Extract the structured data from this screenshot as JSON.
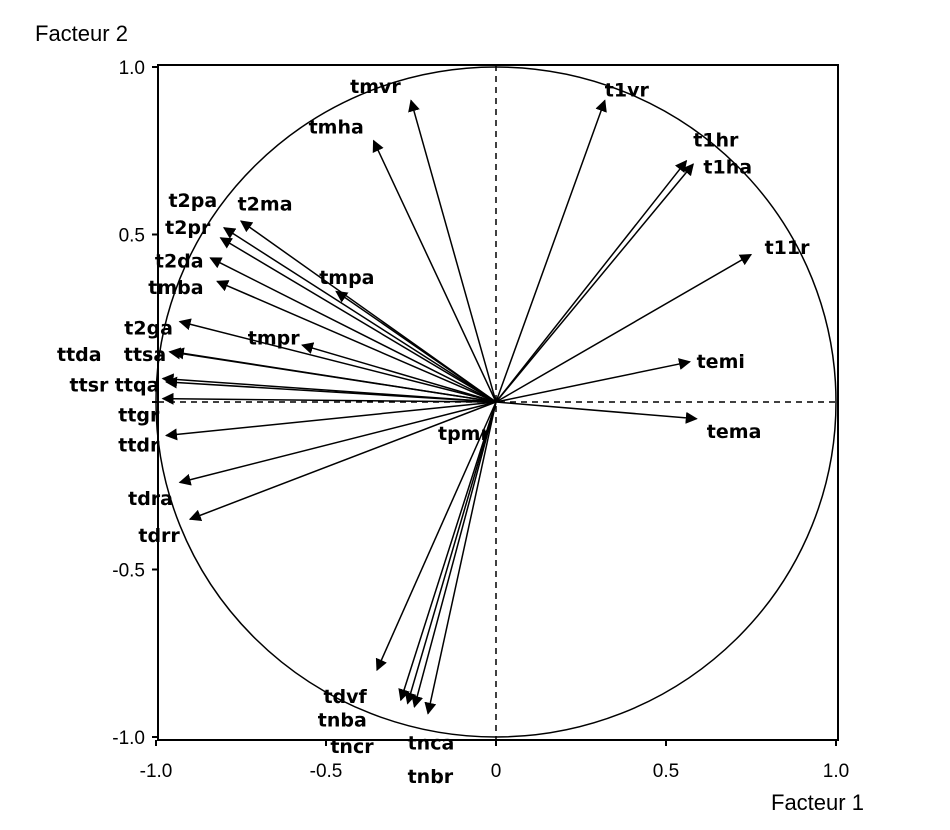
{
  "chart_data": {
    "type": "scatter",
    "title": "",
    "xlabel": "Facteur 1",
    "ylabel": "Facteur 2",
    "xlim": [
      -1.0,
      1.0
    ],
    "ylim": [
      -1.0,
      1.0
    ],
    "xticks": [
      "-1.0",
      "-0.5",
      "0",
      "0.5",
      "1.0"
    ],
    "yticks": [
      "1.0",
      "0.5",
      "",
      "-0.5",
      "-1.0"
    ],
    "grid": false,
    "unit_circle": true,
    "vectors": [
      {
        "name": "tmvr",
        "x": -0.25,
        "y": 0.9
      },
      {
        "name": "tmha",
        "x": -0.36,
        "y": 0.78
      },
      {
        "name": "t1vr",
        "x": 0.32,
        "y": 0.9
      },
      {
        "name": "t1hr",
        "x": 0.56,
        "y": 0.72
      },
      {
        "name": "t1ha",
        "x": 0.58,
        "y": 0.71
      },
      {
        "name": "t11r",
        "x": 0.75,
        "y": 0.44
      },
      {
        "name": "t2pa",
        "x": -0.8,
        "y": 0.52
      },
      {
        "name": "t2ma",
        "x": -0.75,
        "y": 0.54
      },
      {
        "name": "t2pr",
        "x": -0.81,
        "y": 0.49
      },
      {
        "name": "t2da",
        "x": -0.84,
        "y": 0.43
      },
      {
        "name": "tmba",
        "x": -0.82,
        "y": 0.36
      },
      {
        "name": "tmpa",
        "x": -0.47,
        "y": 0.33
      },
      {
        "name": "t2ga",
        "x": -0.93,
        "y": 0.24
      },
      {
        "name": "tmpr",
        "x": -0.57,
        "y": 0.17
      },
      {
        "name": "ttda",
        "x": -0.96,
        "y": 0.15
      },
      {
        "name": "ttsa",
        "x": -0.95,
        "y": 0.15
      },
      {
        "name": "ttsr",
        "x": -0.98,
        "y": 0.07
      },
      {
        "name": "ttqa",
        "x": -0.97,
        "y": 0.06
      },
      {
        "name": "ttgr",
        "x": -0.98,
        "y": 0.01
      },
      {
        "name": "temi",
        "x": 0.57,
        "y": 0.12
      },
      {
        "name": "tema",
        "x": 0.59,
        "y": -0.05
      },
      {
        "name": "ttdr",
        "x": -0.97,
        "y": -0.1
      },
      {
        "name": "tdra",
        "x": -0.93,
        "y": -0.24
      },
      {
        "name": "tdrr",
        "x": -0.9,
        "y": -0.35
      },
      {
        "name": "tdvf",
        "x": -0.35,
        "y": -0.8
      },
      {
        "name": "tnba",
        "x": -0.28,
        "y": -0.89
      },
      {
        "name": "tncr",
        "x": -0.26,
        "y": -0.9
      },
      {
        "name": "tnca",
        "x": -0.2,
        "y": -0.93
      },
      {
        "name": "tnbr",
        "x": -0.24,
        "y": -0.91
      }
    ],
    "annotations": [
      "tpmr"
    ]
  }
}
